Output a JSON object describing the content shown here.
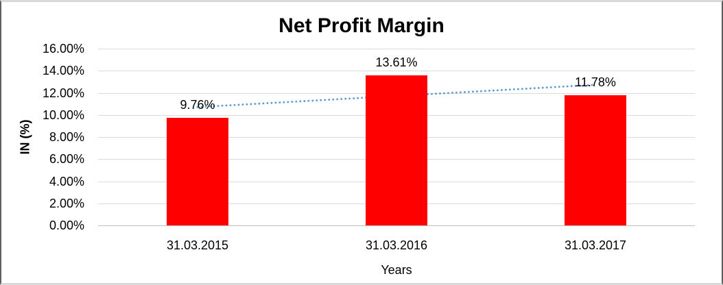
{
  "chart_data": {
    "type": "bar",
    "title": "Net Profit Margin",
    "xlabel": "Years",
    "ylabel": "IN (%)",
    "categories": [
      "31.03.2015",
      "31.03.2016",
      "31.03.2017"
    ],
    "values": [
      9.76,
      13.61,
      11.78
    ],
    "value_labels": [
      "9.76%",
      "13.61%",
      "11.78%"
    ],
    "ylim": [
      0,
      16
    ],
    "yticks": [
      0,
      2,
      4,
      6,
      8,
      10,
      12,
      14,
      16
    ],
    "ytick_labels": [
      "0.00%",
      "2.00%",
      "4.00%",
      "6.00%",
      "8.00%",
      "10.00%",
      "12.00%",
      "14.00%",
      "16.00%"
    ],
    "grid": true,
    "legend": "none",
    "bar_color": "#ff0000",
    "gridline_color": "#d9d9d9",
    "axisline_color": "#bfbfbf",
    "text_color": "#000000",
    "trendline": {
      "type": "linear",
      "style": "dotted",
      "color": "#5b9bd5",
      "start_value": 10.71,
      "end_value": 12.73
    }
  }
}
